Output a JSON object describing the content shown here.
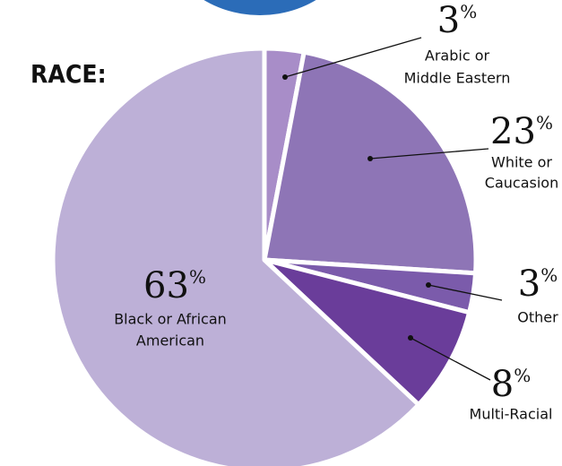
{
  "chart_data": {
    "type": "pie",
    "title": "RACE:",
    "categories": [
      [
        "Arabic or",
        "Middle Eastern"
      ],
      [
        "White or",
        "Caucasion"
      ],
      [
        "Other"
      ],
      [
        "Multi-Racial"
      ],
      [
        "Black or African",
        "American"
      ]
    ],
    "values": [
      3,
      23,
      3,
      8,
      63
    ],
    "value_labels": [
      "3%",
      "23%",
      "3%",
      "8%",
      "63%"
    ],
    "colors": [
      "#a88dc8",
      "#8e75b6",
      "#7b5bab",
      "#6a3d9a",
      "#bdb0d7"
    ]
  }
}
